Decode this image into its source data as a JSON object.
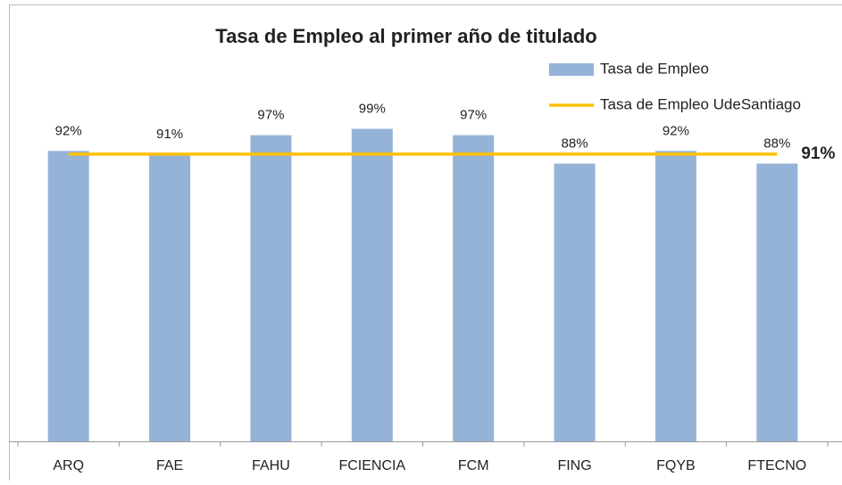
{
  "chart_data": {
    "type": "bar",
    "title": "Tasa de Empleo al primer año de titulado",
    "categories": [
      "ARQ",
      "FAE",
      "FAHU",
      "FCIENCIA",
      "FCM",
      "FING",
      "FQYB",
      "FTECNO"
    ],
    "series": [
      {
        "name": "Tasa de Empleo",
        "type": "bar",
        "color": "#95b3d7",
        "values": [
          92,
          91,
          97,
          99,
          97,
          88,
          92,
          88
        ],
        "value_labels": [
          "92%",
          "91%",
          "97%",
          "99%",
          "97%",
          "88%",
          "92%",
          "88%"
        ]
      },
      {
        "name": "Tasa de Empleo UdeSantiago",
        "type": "line",
        "color": "#ffc000",
        "values": [
          91,
          91,
          91,
          91,
          91,
          91,
          91,
          91
        ],
        "label": "91%"
      }
    ],
    "ylim": [
      0,
      100
    ],
    "grid": false
  }
}
